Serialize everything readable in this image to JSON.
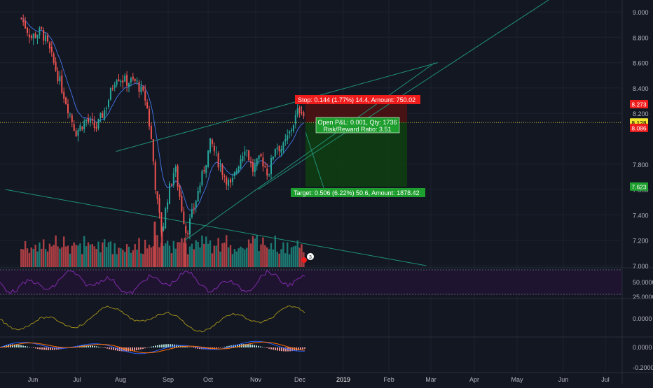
{
  "colors": {
    "background": "#131722",
    "up": "#26a69a",
    "down": "#ef5350",
    "volume_up": "#1f8a80",
    "volume_down": "#c8474a",
    "ema": "#3f6fd8",
    "trendline": "#1f8f78",
    "stop_zone": "#4c1212",
    "target_zone": "#0f3d12",
    "rsi_band": "#1f1430",
    "rsi_line": "#7e2aa8",
    "osc_line": "#9a8a1a",
    "macd_line": "#2962ff",
    "signal_line": "#ff6d00",
    "last_price_line": "#c9b73f",
    "badge_red": "#ef1c1c",
    "badge_green": "#1e9e2e",
    "badge_yellow": "#f2e72d",
    "axis_text": "#b2b5be",
    "grid": "#1e2230"
  },
  "position": {
    "stop_label": "Stop: 0.144 (1.77%) 14.4, Amount: 750.02",
    "open_label": "Open P&L: 0.001, Qty: 1736",
    "rr_label": "Risk/Reward Ratio: 3.51",
    "target_label": "Target: 0.506 (6.22%) 50.6, Amount: 1878.42",
    "entry": 8.129,
    "stop": 8.273,
    "target": 7.623
  },
  "badges": [
    {
      "text": "8.273",
      "value": 8.273,
      "kind": "red"
    },
    {
      "text": "8.129",
      "value": 8.129,
      "kind": "gray"
    },
    {
      "text": "8.128",
      "value": 8.128,
      "kind": "yellow"
    },
    {
      "text": "8.086",
      "value": 8.086,
      "kind": "red"
    },
    {
      "text": "7.623",
      "value": 7.623,
      "kind": "green"
    }
  ],
  "event_marker": "3",
  "chart_data": [
    {
      "type": "candlestick",
      "y_ticks": [
        "9.000",
        "8.800",
        "8.600",
        "8.400",
        "8.200",
        "7.800",
        "7.600",
        "7.400",
        "7.200",
        "7.000"
      ],
      "x_ticks": [
        "Jun",
        "Jul",
        "Aug",
        "Sep",
        "Oct",
        "Nov",
        "Dec",
        "2019",
        "Feb",
        "Mar",
        "Apr",
        "May",
        "Jun",
        "Jul"
      ],
      "ylim": [
        7.0,
        9.0
      ],
      "price_path": [
        [
          "2018-05-21",
          8.95
        ],
        [
          "2018-05-28",
          8.8
        ],
        [
          "2018-06-04",
          8.85
        ],
        [
          "2018-06-08",
          8.75
        ],
        [
          "2018-06-14",
          8.55
        ],
        [
          "2018-06-21",
          8.3
        ],
        [
          "2018-06-28",
          8.05
        ],
        [
          "2018-07-05",
          8.15
        ],
        [
          "2018-07-12",
          8.08
        ],
        [
          "2018-07-19",
          8.25
        ],
        [
          "2018-07-26",
          8.5
        ],
        [
          "2018-08-02",
          8.45
        ],
        [
          "2018-08-09",
          8.45
        ],
        [
          "2018-08-16",
          8.3
        ],
        [
          "2018-08-20",
          7.95
        ],
        [
          "2018-08-23",
          7.55
        ],
        [
          "2018-08-27",
          7.25
        ],
        [
          "2018-08-31",
          7.55
        ],
        [
          "2018-09-05",
          7.78
        ],
        [
          "2018-09-09",
          7.5
        ],
        [
          "2018-09-13",
          7.25
        ],
        [
          "2018-09-18",
          7.45
        ],
        [
          "2018-09-25",
          7.75
        ],
        [
          "2018-09-30",
          7.98
        ],
        [
          "2018-10-04",
          7.85
        ],
        [
          "2018-10-09",
          7.72
        ],
        [
          "2018-10-14",
          7.62
        ],
        [
          "2018-10-19",
          7.8
        ],
        [
          "2018-10-24",
          7.95
        ],
        [
          "2018-10-29",
          7.75
        ],
        [
          "2018-11-04",
          7.85
        ],
        [
          "2018-11-09",
          7.72
        ],
        [
          "2018-11-14",
          7.95
        ],
        [
          "2018-11-19",
          7.92
        ],
        [
          "2018-11-24",
          8.05
        ],
        [
          "2018-11-29",
          8.2
        ],
        [
          "2018-12-02",
          8.25
        ],
        [
          "2018-12-05",
          8.13
        ]
      ],
      "ema_label": "",
      "trendlines": [
        {
          "from": [
            "2018-07-26",
            7.9
          ],
          "to": [
            "2019-03-07",
            8.6
          ]
        },
        {
          "from": [
            "2018-09-12",
            7.2
          ],
          "to": [
            "2019-03-05",
            8.6
          ]
        },
        {
          "from": [
            "2018-11-02",
            7.6
          ],
          "to": [
            "2019-06-20",
            9.3
          ]
        },
        {
          "from": [
            "2018-05-10",
            7.6
          ],
          "to": [
            "2019-02-27",
            7.0
          ]
        },
        {
          "from": [
            "2018-12-05",
            8.05
          ],
          "to": [
            "2018-12-18",
            7.6
          ]
        }
      ]
    },
    {
      "type": "bar",
      "name": "volume"
    },
    {
      "type": "line",
      "name": "rsi",
      "y_ticks": [
        "50.0000",
        "25.0000"
      ]
    },
    {
      "type": "line",
      "name": "oscillator",
      "y_ticks": [
        "0.0000"
      ]
    },
    {
      "type": "bar",
      "name": "macd",
      "y_ticks": [
        "0.0000",
        "-0.2000"
      ]
    }
  ]
}
